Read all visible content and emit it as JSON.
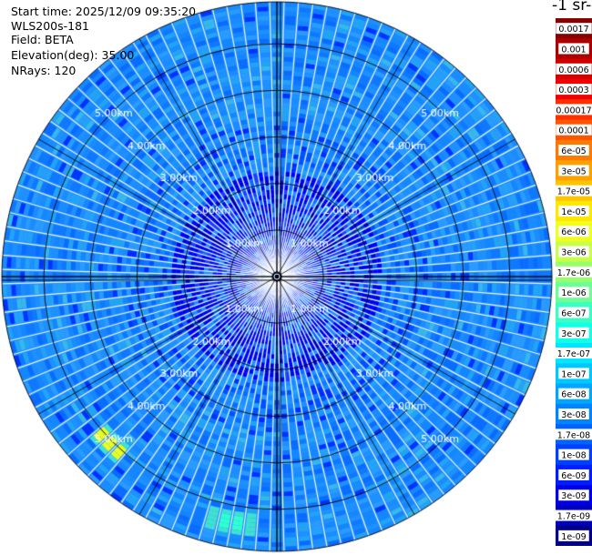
{
  "header": {
    "start_time": "Start time: 2025/12/09 09:35:20",
    "instrument": "WLS200s-181",
    "field": "Field: BETA",
    "elevation": "Elevation(deg): 35.00",
    "nrays": "NRays: 120"
  },
  "chart_data": {
    "type": "heatmap",
    "projection": "polar (PPI scan)",
    "field": "BETA",
    "elevation_deg": 35.0,
    "n_rays": 120,
    "max_range_km": 5.9,
    "range_rings_km": [
      1,
      2,
      3,
      4,
      5
    ],
    "range_labels": [
      "1.00km",
      "2.00km",
      "3.00km",
      "4.00km",
      "5.00km"
    ],
    "grid": true,
    "colorbar": {
      "title": "-1 sr-",
      "ticks": [
        "0.0017",
        "0.001",
        "0.0006",
        "0.0003",
        "0.00017",
        "0.0001",
        "6e-05",
        "3e-05",
        "1.7e-05",
        "1e-05",
        "6e-06",
        "3e-06",
        "1.7e-06",
        "1e-06",
        "6e-07",
        "3e-07",
        "1.7e-07",
        "1e-07",
        "6e-08",
        "3e-08",
        "1.7e-08",
        "1e-08",
        "6e-09",
        "3e-09",
        "1.7e-09",
        "1e-09"
      ],
      "colors": [
        "#8a0000",
        "#ad0000",
        "#d40000",
        "#f50000",
        "#ff3000",
        "#ff5500",
        "#ff7a00",
        "#ffa000",
        "#ffc400",
        "#ffe800",
        "#f0ff20",
        "#c8ff48",
        "#96ff6e",
        "#6cff96",
        "#3affc4",
        "#12ffe8",
        "#00e6ff",
        "#00c8ff",
        "#00a6ff",
        "#0084ff",
        "#0062ff",
        "#0040ff",
        "#001eff",
        "#0000e6",
        "#0000b8",
        "#00008a"
      ]
    },
    "typical_value": "3e-08",
    "near_range_value": "6e-09",
    "hotspots": [
      {
        "azimuth_deg": 225,
        "range_km": 5.0,
        "value": "1e-05"
      },
      {
        "azimuth_deg": 190,
        "range_km": 5.3,
        "value": "3e-06"
      }
    ]
  }
}
